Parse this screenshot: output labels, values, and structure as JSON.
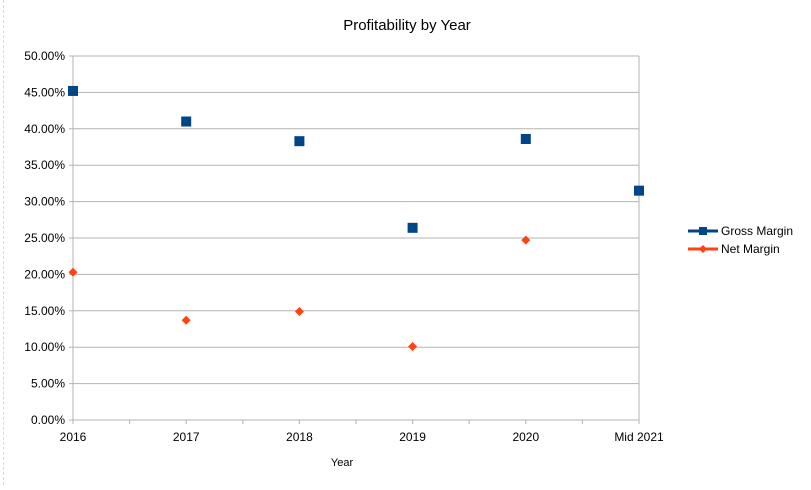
{
  "chart_data": {
    "type": "scatter",
    "title": "Profitability by Year",
    "xlabel": "Year",
    "ylabel": "",
    "categories": [
      "2016",
      "2017",
      "2018",
      "2019",
      "2020",
      "Mid 2021"
    ],
    "y_ticks": [
      "0.00%",
      "5.00%",
      "10.00%",
      "15.00%",
      "20.00%",
      "25.00%",
      "30.00%",
      "35.00%",
      "40.00%",
      "45.00%",
      "50.00%"
    ],
    "ylim": [
      0,
      0.5
    ],
    "grid": true,
    "legend_position": "right",
    "series": [
      {
        "name": "Gross Margin",
        "color": "#004586",
        "marker": "square",
        "values": [
          0.452,
          0.41,
          0.383,
          0.264,
          0.386,
          0.315
        ]
      },
      {
        "name": "Net Margin",
        "color": "#ff420e",
        "marker": "diamond",
        "values": [
          0.203,
          0.137,
          0.149,
          0.101,
          0.247,
          null
        ]
      }
    ]
  }
}
